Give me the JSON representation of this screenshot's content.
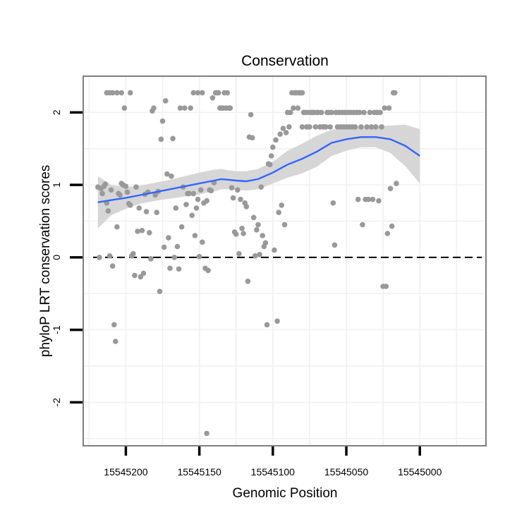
{
  "chart_data": {
    "type": "scatter",
    "title": "Conservation",
    "xlabel": "Genomic Position",
    "ylabel": "phyloP LRT conservation scores",
    "x_reversed": true,
    "xlim": [
      15545229,
      15544955
    ],
    "ylim": [
      -2.6,
      2.5
    ],
    "x_ticks": [
      15545200,
      15545150,
      15545100,
      15545050,
      15545000
    ],
    "x_tick_labels": [
      "15545200",
      "15545150",
      "15545100",
      "15545050",
      "15545000"
    ],
    "y_ticks": [
      -2,
      -1,
      0,
      1,
      2
    ],
    "y_tick_labels": [
      "-2",
      "-1",
      "0",
      "1",
      "2"
    ],
    "reference_line": {
      "y": 0,
      "style": "dashed",
      "color": "#000000"
    },
    "grid": true,
    "point_color": "#999999",
    "smooth_color": "#3366ff",
    "band_color": "#d6d6d6",
    "points": [
      [
        15545219,
        0.97
      ],
      [
        15545218,
        0.0
      ],
      [
        15545217,
        0.95
      ],
      [
        15545216,
        0.88
      ],
      [
        15545215,
        0.98
      ],
      [
        15545214,
        1.01
      ],
      [
        15545213,
        0.75
      ],
      [
        15545212,
        0.64
      ],
      [
        15545211,
        0.02
      ],
      [
        15545210,
        0.93
      ],
      [
        15545209,
        -0.12
      ],
      [
        15545208,
        -0.93
      ],
      [
        15545207,
        -1.16
      ],
      [
        15545206,
        0.42
      ],
      [
        15545205,
        0.88
      ],
      [
        15545204,
        0.86
      ],
      [
        15545203,
        1.02
      ],
      [
        15545202,
        1.0
      ],
      [
        15545201,
        2.06
      ],
      [
        15545200,
        0.98
      ],
      [
        15545199,
        0.9
      ],
      [
        15545198,
        0.74
      ],
      [
        15545197,
        0.72
      ],
      [
        15545196,
        0.02
      ],
      [
        15545195,
        0.05
      ],
      [
        15545194,
        -0.25
      ],
      [
        15545193,
        0.97
      ],
      [
        15545192,
        0.36
      ],
      [
        15545191,
        0.68
      ],
      [
        15545190,
        -0.27
      ],
      [
        15545189,
        0.37
      ],
      [
        15545188,
        -0.22
      ],
      [
        15545187,
        0.87
      ],
      [
        15545186,
        0.63
      ],
      [
        15545185,
        0.9
      ],
      [
        15545184,
        0.34
      ],
      [
        15545183,
        -0.02
      ],
      [
        15545182,
        2.02
      ],
      [
        15545181,
        2.06
      ],
      [
        15545180,
        0.86
      ],
      [
        15545179,
        0.62
      ],
      [
        15545178,
        0.91
      ],
      [
        15545177,
        -0.47
      ],
      [
        15545176,
        1.63
      ],
      [
        15545175,
        1.88
      ],
      [
        15545174,
        0.14
      ],
      [
        15545173,
        2.16
      ],
      [
        15545172,
        1.15
      ],
      [
        15545171,
        0.27
      ],
      [
        15545170,
        -0.15
      ],
      [
        15545169,
        1.12
      ],
      [
        15545168,
        1.64
      ],
      [
        15545167,
        0.0
      ],
      [
        15545166,
        0.68
      ],
      [
        15545165,
        0.15
      ],
      [
        15545164,
        -0.16
      ],
      [
        15545163,
        2.06
      ],
      [
        15545162,
        0.42
      ],
      [
        15545161,
        0.97
      ],
      [
        15545160,
        2.06
      ],
      [
        15545159,
        0.73
      ],
      [
        15545158,
        0.88
      ],
      [
        15545157,
        0.88
      ],
      [
        15545156,
        2.06
      ],
      [
        15545155,
        0.58
      ],
      [
        15545154,
        0.88
      ],
      [
        15545153,
        0.3
      ],
      [
        15545152,
        0.68
      ],
      [
        15545151,
        0.8
      ],
      [
        15545150,
        0.01
      ],
      [
        15545149,
        0.93
      ],
      [
        15545148,
        0.21
      ],
      [
        15545147,
        0.75
      ],
      [
        15545146,
        -0.15
      ],
      [
        15545145,
        0.78
      ],
      [
        15545144,
        -0.18
      ],
      [
        15545143,
        0.93
      ],
      [
        15545142,
        0.92
      ],
      [
        15545141,
        2.2
      ],
      [
        15545140,
        1.03
      ],
      [
        15545139,
        2.27
      ],
      [
        15545138,
        2.27
      ],
      [
        15545137,
        2.27
      ],
      [
        15545136,
        2.06
      ],
      [
        15545135,
        2.06
      ],
      [
        15545134,
        2.06
      ],
      [
        15545133,
        2.27
      ],
      [
        15545132,
        2.06
      ],
      [
        15545131,
        2.27
      ],
      [
        15545130,
        2.06
      ],
      [
        15545129,
        2.06
      ],
      [
        15545128,
        0.96
      ],
      [
        15545127,
        0.82
      ],
      [
        15545126,
        0.35
      ],
      [
        15545125,
        0.32
      ],
      [
        15545124,
        0.93
      ],
      [
        15545123,
        0.05
      ],
      [
        15545122,
        0.8
      ],
      [
        15545121,
        0.4
      ],
      [
        15545120,
        0.33
      ],
      [
        15545119,
        0.75
      ],
      [
        15545118,
        0.7
      ],
      [
        15545117,
        -0.33
      ],
      [
        15545116,
        1.66
      ],
      [
        15545115,
        1.97
      ],
      [
        15545114,
        1.65
      ],
      [
        15545113,
        0.55
      ],
      [
        15545112,
        0.02
      ],
      [
        15545111,
        0.38
      ],
      [
        15545110,
        0.45
      ],
      [
        15545109,
        0.04
      ],
      [
        15545108,
        0.97
      ],
      [
        15545107,
        0.3
      ],
      [
        15545106,
        0.15
      ],
      [
        15545105,
        0.2
      ],
      [
        15545104,
        -0.93
      ],
      [
        15545103,
        1.29
      ],
      [
        15545102,
        1.28
      ],
      [
        15545101,
        1.4
      ],
      [
        15545100,
        1.52
      ],
      [
        15545099,
        0.1
      ],
      [
        15545098,
        1.62
      ],
      [
        15545097,
        -0.88
      ],
      [
        15545096,
        0.62
      ],
      [
        15545095,
        1.7
      ],
      [
        15545094,
        0.72
      ],
      [
        15545093,
        1.78
      ],
      [
        15545092,
        0.45
      ],
      [
        15545091,
        1.72
      ],
      [
        15545090,
        2.0
      ],
      [
        15545089,
        1.8
      ],
      [
        15545088,
        2.0
      ],
      [
        15545087,
        2.27
      ],
      [
        15545086,
        2.06
      ],
      [
        15545085,
        2.27
      ],
      [
        15545084,
        2.27
      ],
      [
        15545083,
        2.06
      ],
      [
        15545082,
        2.27
      ],
      [
        15545081,
        2.27
      ],
      [
        15545080,
        1.8
      ],
      [
        15545079,
        2.0
      ],
      [
        15545078,
        2.0
      ],
      [
        15545077,
        1.8
      ],
      [
        15545076,
        2.0
      ],
      [
        15545075,
        1.8
      ],
      [
        15545074,
        2.0
      ],
      [
        15545073,
        2.0
      ],
      [
        15545072,
        2.0
      ],
      [
        15545071,
        1.8
      ],
      [
        15545070,
        2.0
      ],
      [
        15545069,
        2.0
      ],
      [
        15545068,
        1.8
      ],
      [
        15545067,
        2.0
      ],
      [
        15545066,
        1.8
      ],
      [
        15545065,
        1.8
      ],
      [
        15545064,
        1.8
      ],
      [
        15545063,
        2.0
      ],
      [
        15545062,
        2.0
      ],
      [
        15545061,
        1.8
      ],
      [
        15545060,
        2.0
      ],
      [
        15545059,
        0.75
      ],
      [
        15545058,
        0.17
      ],
      [
        15545057,
        2.0
      ],
      [
        15545056,
        1.8
      ],
      [
        15545055,
        2.0
      ],
      [
        15545054,
        1.8
      ],
      [
        15545053,
        2.0
      ],
      [
        15545052,
        1.8
      ],
      [
        15545051,
        2.0
      ],
      [
        15545050,
        1.8
      ],
      [
        15545049,
        2.0
      ],
      [
        15545048,
        1.8
      ],
      [
        15545047,
        2.0
      ],
      [
        15545046,
        1.8
      ],
      [
        15545045,
        2.0
      ],
      [
        15545044,
        1.8
      ],
      [
        15545043,
        2.0
      ],
      [
        15545042,
        0.8
      ],
      [
        15545041,
        2.0
      ],
      [
        15545040,
        1.8
      ],
      [
        15545039,
        0.45
      ],
      [
        15545038,
        2.0
      ],
      [
        15545037,
        0.8
      ],
      [
        15545036,
        1.8
      ],
      [
        15545035,
        0.8
      ],
      [
        15545034,
        2.0
      ],
      [
        15545033,
        1.8
      ],
      [
        15545032,
        0.8
      ],
      [
        15545031,
        2.0
      ],
      [
        15545030,
        1.8
      ],
      [
        15545029,
        2.0
      ],
      [
        15545028,
        0.78
      ],
      [
        15545027,
        2.0
      ],
      [
        15545026,
        1.8
      ],
      [
        15545025,
        -0.4
      ],
      [
        15545024,
        2.06
      ],
      [
        15545023,
        -0.4
      ],
      [
        15545022,
        0.33
      ],
      [
        15545021,
        2.06
      ],
      [
        15545020,
        0.95
      ],
      [
        15545019,
        0.43
      ],
      [
        15545018,
        2.27
      ],
      [
        15545017,
        2.27
      ],
      [
        15545016,
        1.02
      ],
      [
        15545213,
        2.27
      ],
      [
        15545211,
        2.27
      ],
      [
        15545209,
        2.27
      ],
      [
        15545206,
        2.27
      ],
      [
        15545203,
        2.27
      ],
      [
        15545197,
        2.27
      ],
      [
        15545148,
        2.27
      ],
      [
        15545151,
        2.27
      ],
      [
        15545154,
        2.27
      ],
      [
        15545082,
        2.27
      ],
      [
        15545080,
        2.27
      ],
      [
        15545145,
        -2.43
      ]
    ],
    "smooth": [
      [
        15545219,
        0.76
      ],
      [
        15545210,
        0.79
      ],
      [
        15545200,
        0.82
      ],
      [
        15545190,
        0.86
      ],
      [
        15545180,
        0.9
      ],
      [
        15545170,
        0.94
      ],
      [
        15545160,
        0.98
      ],
      [
        15545150,
        1.02
      ],
      [
        15545140,
        1.06
      ],
      [
        15545135,
        1.08
      ],
      [
        15545130,
        1.07
      ],
      [
        15545125,
        1.06
      ],
      [
        15545118,
        1.05
      ],
      [
        15545110,
        1.08
      ],
      [
        15545100,
        1.17
      ],
      [
        15545090,
        1.28
      ],
      [
        15545080,
        1.36
      ],
      [
        15545070,
        1.46
      ],
      [
        15545060,
        1.58
      ],
      [
        15545050,
        1.63
      ],
      [
        15545040,
        1.66
      ],
      [
        15545030,
        1.66
      ],
      [
        15545020,
        1.63
      ],
      [
        15545010,
        1.54
      ],
      [
        15545000,
        1.4
      ]
    ],
    "band_upper": [
      [
        15545219,
        1.12
      ],
      [
        15545210,
        1.0
      ],
      [
        15545200,
        0.97
      ],
      [
        15545190,
        0.99
      ],
      [
        15545180,
        1.03
      ],
      [
        15545170,
        1.07
      ],
      [
        15545160,
        1.12
      ],
      [
        15545150,
        1.17
      ],
      [
        15545140,
        1.21
      ],
      [
        15545135,
        1.22
      ],
      [
        15545130,
        1.2
      ],
      [
        15545125,
        1.19
      ],
      [
        15545118,
        1.19
      ],
      [
        15545110,
        1.22
      ],
      [
        15545100,
        1.32
      ],
      [
        15545090,
        1.47
      ],
      [
        15545080,
        1.57
      ],
      [
        15545070,
        1.68
      ],
      [
        15545060,
        1.76
      ],
      [
        15545050,
        1.78
      ],
      [
        15545040,
        1.8
      ],
      [
        15545030,
        1.81
      ],
      [
        15545020,
        1.82
      ],
      [
        15545010,
        1.83
      ],
      [
        15545000,
        1.77
      ]
    ],
    "band_lower": [
      [
        15545219,
        0.4
      ],
      [
        15545210,
        0.58
      ],
      [
        15545200,
        0.67
      ],
      [
        15545190,
        0.74
      ],
      [
        15545180,
        0.78
      ],
      [
        15545170,
        0.81
      ],
      [
        15545160,
        0.84
      ],
      [
        15545150,
        0.87
      ],
      [
        15545140,
        0.91
      ],
      [
        15545135,
        0.94
      ],
      [
        15545130,
        0.94
      ],
      [
        15545125,
        0.93
      ],
      [
        15545118,
        0.92
      ],
      [
        15545110,
        0.94
      ],
      [
        15545100,
        1.02
      ],
      [
        15545090,
        1.1
      ],
      [
        15545080,
        1.16
      ],
      [
        15545070,
        1.25
      ],
      [
        15545060,
        1.4
      ],
      [
        15545050,
        1.47
      ],
      [
        15545040,
        1.52
      ],
      [
        15545030,
        1.52
      ],
      [
        15545020,
        1.44
      ],
      [
        15545010,
        1.26
      ],
      [
        15545000,
        1.02
      ]
    ]
  }
}
